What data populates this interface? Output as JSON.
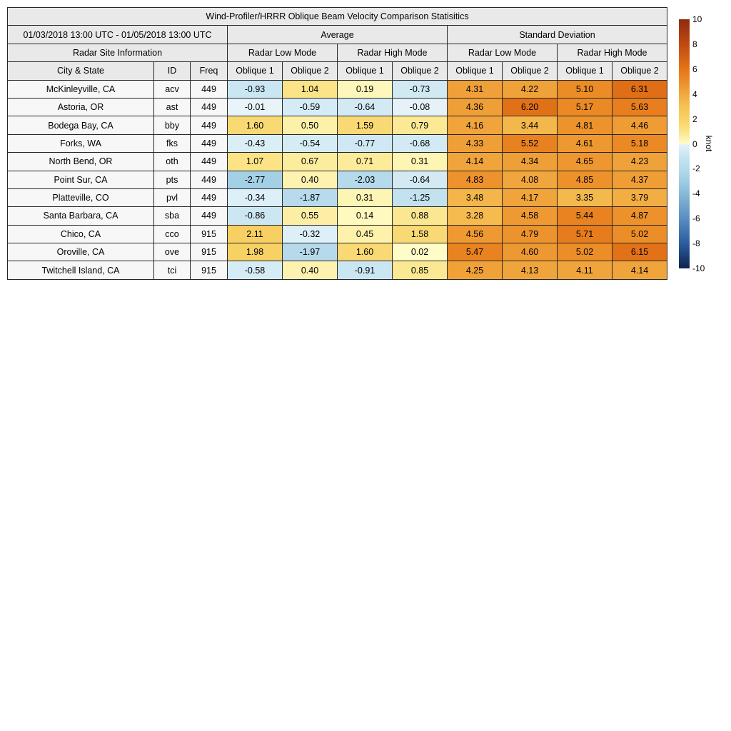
{
  "chart_data": {
    "type": "table",
    "title": "Wind-Profiler/HRRR Oblique Beam Velocity Comparison Statisitics",
    "date_range": "01/03/2018 13:00 UTC - 01/05/2018 13:00 UTC",
    "group_headers": {
      "site_info": "Radar Site Information",
      "average": "Average",
      "std_dev": "Standard Deviation"
    },
    "mode_headers": [
      "Radar Low Mode",
      "Radar High Mode",
      "Radar Low Mode",
      "Radar High Mode"
    ],
    "column_headers": [
      "City & State",
      "ID",
      "Freq",
      "Oblique 1",
      "Oblique 2",
      "Oblique 1",
      "Oblique 2",
      "Oblique 1",
      "Oblique 2",
      "Oblique 1",
      "Oblique 2"
    ],
    "rows": [
      {
        "city": "McKinleyville, CA",
        "id": "acv",
        "freq": "449",
        "values": [
          "-0.93",
          "1.04",
          "0.19",
          "-0.73",
          "4.31",
          "4.22",
          "5.10",
          "6.31"
        ]
      },
      {
        "city": "Astoria, OR",
        "id": "ast",
        "freq": "449",
        "values": [
          "-0.01",
          "-0.59",
          "-0.64",
          "-0.08",
          "4.36",
          "6.20",
          "5.17",
          "5.63"
        ]
      },
      {
        "city": "Bodega Bay, CA",
        "id": "bby",
        "freq": "449",
        "values": [
          "1.60",
          "0.50",
          "1.59",
          "0.79",
          "4.16",
          "3.44",
          "4.81",
          "4.46"
        ]
      },
      {
        "city": "Forks, WA",
        "id": "fks",
        "freq": "449",
        "values": [
          "-0.43",
          "-0.54",
          "-0.77",
          "-0.68",
          "4.33",
          "5.52",
          "4.61",
          "5.18"
        ]
      },
      {
        "city": "North Bend, OR",
        "id": "oth",
        "freq": "449",
        "values": [
          "1.07",
          "0.67",
          "0.71",
          "0.31",
          "4.14",
          "4.34",
          "4.65",
          "4.23"
        ]
      },
      {
        "city": "Point Sur, CA",
        "id": "pts",
        "freq": "449",
        "values": [
          "-2.77",
          "0.40",
          "-2.03",
          "-0.64",
          "4.83",
          "4.08",
          "4.85",
          "4.37"
        ]
      },
      {
        "city": "Platteville, CO",
        "id": "pvl",
        "freq": "449",
        "values": [
          "-0.34",
          "-1.87",
          "0.31",
          "-1.25",
          "3.48",
          "4.17",
          "3.35",
          "3.79"
        ]
      },
      {
        "city": "Santa Barbara, CA",
        "id": "sba",
        "freq": "449",
        "values": [
          "-0.86",
          "0.55",
          "0.14",
          "0.88",
          "3.28",
          "4.58",
          "5.44",
          "4.87"
        ]
      },
      {
        "city": "Chico, CA",
        "id": "cco",
        "freq": "915",
        "values": [
          "2.11",
          "-0.32",
          "0.45",
          "1.58",
          "4.56",
          "4.79",
          "5.71",
          "5.02"
        ]
      },
      {
        "city": "Oroville, CA",
        "id": "ove",
        "freq": "915",
        "values": [
          "1.98",
          "-1.97",
          "1.60",
          "0.02",
          "5.47",
          "4.60",
          "5.02",
          "6.15"
        ]
      },
      {
        "city": "Twitchell Island, CA",
        "id": "tci",
        "freq": "915",
        "values": [
          "-0.58",
          "0.40",
          "-0.91",
          "0.85",
          "4.25",
          "4.13",
          "4.11",
          "4.14"
        ]
      }
    ],
    "colorbar": {
      "unit_label": "knot",
      "min": -10,
      "max": 10,
      "tick_labels": [
        "10",
        "8",
        "6",
        "4",
        "2",
        "0",
        "-2",
        "-4",
        "-6",
        "-8",
        "-10"
      ],
      "colormap_positive": [
        [
          0,
          "#fefcc8"
        ],
        [
          1,
          "#fbe489"
        ],
        [
          2,
          "#f8d164"
        ],
        [
          3,
          "#f6c254"
        ],
        [
          4,
          "#f1a83f"
        ],
        [
          5,
          "#ec8e28"
        ],
        [
          6,
          "#e57517"
        ],
        [
          8,
          "#bf4a12"
        ],
        [
          10,
          "#8e2b0d"
        ]
      ],
      "colormap_negative": [
        [
          -10,
          "#10234d"
        ],
        [
          -8,
          "#2a5c9f"
        ],
        [
          -6,
          "#5a8ec0"
        ],
        [
          -4,
          "#88b9d9"
        ],
        [
          -3,
          "#9fcde4"
        ],
        [
          -2,
          "#b5daeb"
        ],
        [
          -1,
          "#c7e5f1"
        ],
        [
          0,
          "#e8f4fa"
        ]
      ]
    }
  },
  "colors": {
    "header_bg": "#e9e9e9",
    "label_cell_bg": "#f7f7f7",
    "border": "#262626",
    "text": "#000000",
    "page_bg": "#ffffff"
  }
}
